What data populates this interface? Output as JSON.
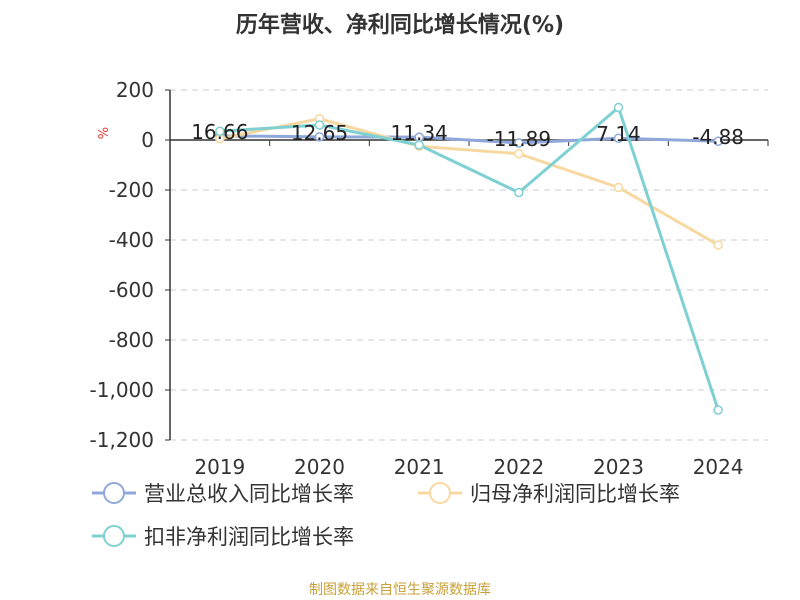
{
  "chart_data": {
    "type": "line",
    "title": "历年营收、净利同比增长情况(%)",
    "ylabel": "%",
    "categories": [
      "2019",
      "2020",
      "2021",
      "2022",
      "2023",
      "2024"
    ],
    "ylim": [
      -1200,
      200
    ],
    "yticks": [
      200,
      0,
      -200,
      -400,
      -600,
      -800,
      -1000,
      -1200
    ],
    "ytick_labels": [
      "200",
      "0",
      "-200",
      "-400",
      "-600",
      "-800",
      "-1,000",
      "-1,200"
    ],
    "grid": true,
    "legend_position": "bottom-left",
    "series": [
      {
        "name": "营业总收入同比增长率",
        "color": "#8fa8d9",
        "values": [
          16.66,
          12.65,
          11.34,
          -11.89,
          7.14,
          -4.88
        ],
        "labels": [
          "16.66",
          "12.65",
          "11.34",
          "-11.89",
          "7.14",
          "-4.88"
        ]
      },
      {
        "name": "归母净利润同比增长率",
        "color": "#f8d8a0",
        "values": [
          5,
          85,
          -25,
          -55,
          -190,
          -420
        ]
      },
      {
        "name": "扣非净利润同比增长率",
        "color": "#7fd0d3",
        "values": [
          35,
          60,
          -20,
          -210,
          130,
          -1080
        ]
      }
    ]
  },
  "source": "制图数据来自恒生聚源数据库"
}
